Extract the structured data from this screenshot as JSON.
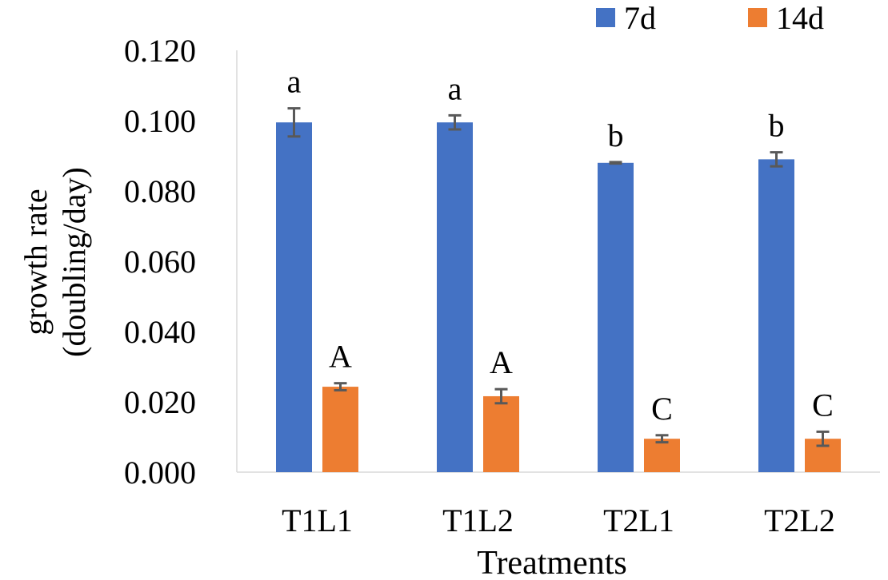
{
  "chart_data": {
    "type": "bar",
    "title": "",
    "xlabel": "Treatments",
    "ylabel_lines": [
      "growth rate",
      "(doubling/day)"
    ],
    "ylim": [
      0,
      0.12
    ],
    "yticks": [
      "0.000",
      "0.020",
      "0.040",
      "0.060",
      "0.080",
      "0.100",
      "0.120"
    ],
    "ytick_values": [
      0,
      0.02,
      0.04,
      0.06,
      0.08,
      0.1,
      0.12
    ],
    "categories": [
      "T1L1",
      "T1L2",
      "T2L1",
      "T2L2"
    ],
    "legend_position": "top-right",
    "series": [
      {
        "name": "7d",
        "color": "#4472C4",
        "values": [
          0.0995,
          0.0995,
          0.088,
          0.089
        ],
        "errors": [
          0.004,
          0.002,
          0.0002,
          0.002
        ],
        "labels": [
          "a",
          "a",
          "b",
          "b"
        ]
      },
      {
        "name": "14d",
        "color": "#ED7D31",
        "values": [
          0.0243,
          0.0216,
          0.0095,
          0.0095
        ],
        "errors": [
          0.001,
          0.002,
          0.001,
          0.002
        ],
        "labels": [
          "A",
          "A",
          "C",
          "C"
        ]
      }
    ],
    "grid": false
  }
}
